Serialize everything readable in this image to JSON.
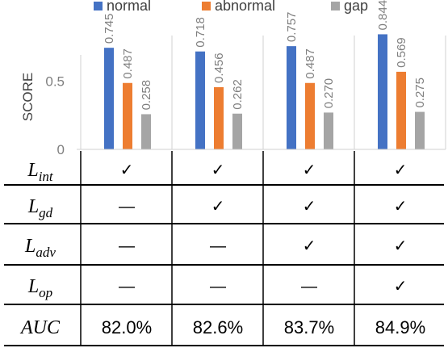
{
  "legend": [
    {
      "label": "normal",
      "color": "#4472C4"
    },
    {
      "label": "abnormal",
      "color": "#ED7D31"
    },
    {
      "label": "gap",
      "color": "#A5A5A5"
    }
  ],
  "chart_data": {
    "type": "bar",
    "ylabel": "SCORE",
    "ylim": [
      0,
      0.9
    ],
    "yticks": [
      "0",
      "0.5"
    ],
    "legend_position": "top",
    "grid": false,
    "categories": [
      "",
      "",
      "",
      ""
    ],
    "series": [
      {
        "name": "normal",
        "color": "#4472C4",
        "values": [
          0.745,
          0.718,
          0.757,
          0.844
        ],
        "labels": [
          "0.745",
          "0.718",
          "0.757",
          "0.844"
        ]
      },
      {
        "name": "abnormal",
        "color": "#ED7D31",
        "values": [
          0.487,
          0.456,
          0.487,
          0.569
        ],
        "labels": [
          "0.487",
          "0.456",
          "0.487",
          "0.569"
        ]
      },
      {
        "name": "gap",
        "color": "#A5A5A5",
        "values": [
          0.258,
          0.262,
          0.27,
          0.275
        ],
        "labels": [
          "0.258",
          "0.262",
          "0.270",
          "0.275"
        ]
      }
    ]
  },
  "table": {
    "rows": [
      {
        "label_base": "L",
        "label_sub": "int",
        "cells": [
          "✓",
          "✓",
          "✓",
          "✓"
        ]
      },
      {
        "label_base": "L",
        "label_sub": "gd",
        "cells": [
          "—",
          "✓",
          "✓",
          "✓"
        ]
      },
      {
        "label_base": "L",
        "label_sub": "adv",
        "cells": [
          "—",
          "—",
          "✓",
          "✓"
        ]
      },
      {
        "label_base": "L",
        "label_sub": "op",
        "cells": [
          "—",
          "—",
          "—",
          "✓"
        ]
      },
      {
        "label_base": "AUC",
        "label_sub": "",
        "cells": [
          "82.0%",
          "82.6%",
          "83.7%",
          "84.9%"
        ]
      }
    ]
  }
}
